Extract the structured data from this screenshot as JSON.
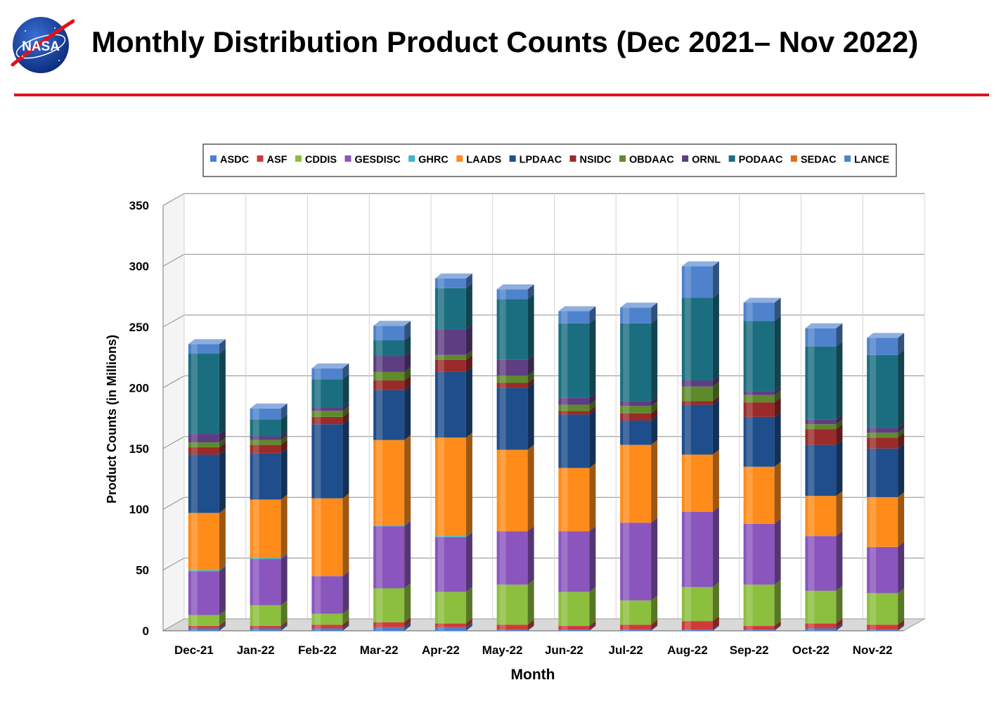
{
  "header": {
    "title": "Monthly Distribution Product Counts (Dec 2021– Nov 2022)",
    "logo_text": "NASA"
  },
  "chart_data": {
    "type": "bar",
    "stacked": true,
    "style": "3d",
    "title": "",
    "xlabel": "Month",
    "ylabel": "Product Counts (in Millions)",
    "ylim": [
      0,
      350
    ],
    "yticks": [
      0,
      50,
      100,
      150,
      200,
      250,
      300,
      350
    ],
    "grid": true,
    "legend_position": "top",
    "categories": [
      "Dec-21",
      "Jan-22",
      "Feb-22",
      "Mar-22",
      "Apr-22",
      "May-22",
      "Jun-22",
      "Jul-22",
      "Aug-22",
      "Sep-22",
      "Oct-22",
      "Nov-22"
    ],
    "series": [
      {
        "name": "ASDC",
        "color": "#4a7fd0",
        "values": [
          2,
          2,
          2,
          3,
          3,
          1,
          1,
          1,
          1,
          1,
          2,
          1
        ]
      },
      {
        "name": "ASF",
        "color": "#d03a3a",
        "values": [
          2,
          2,
          3,
          4,
          3,
          4,
          3,
          4,
          7,
          3,
          4,
          4
        ]
      },
      {
        "name": "CDDIS",
        "color": "#8cbf3e",
        "values": [
          9,
          17,
          9,
          28,
          26,
          33,
          28,
          20,
          28,
          34,
          27,
          26
        ]
      },
      {
        "name": "GESDISC",
        "color": "#8a55bd",
        "values": [
          36,
          38,
          31,
          51,
          45,
          44,
          50,
          64,
          62,
          50,
          45,
          38
        ]
      },
      {
        "name": "GHRC",
        "color": "#3fb4cf",
        "values": [
          1,
          1,
          0,
          1,
          1,
          0,
          0,
          0,
          0,
          0,
          0,
          0
        ]
      },
      {
        "name": "LAADS",
        "color": "#ff8c1a",
        "values": [
          47,
          48,
          64,
          70,
          81,
          67,
          52,
          64,
          47,
          47,
          33,
          41
        ]
      },
      {
        "name": "LPDAAC",
        "color": "#1f4e8c",
        "values": [
          48,
          38,
          61,
          41,
          54,
          51,
          44,
          20,
          41,
          41,
          42,
          40
        ]
      },
      {
        "name": "NSIDC",
        "color": "#9b2a2a",
        "values": [
          6,
          7,
          6,
          8,
          10,
          4,
          3,
          6,
          3,
          12,
          13,
          9
        ]
      },
      {
        "name": "OBDAAC",
        "color": "#5f8a2a",
        "values": [
          4,
          4,
          5,
          7,
          4,
          6,
          5,
          6,
          12,
          6,
          4,
          4
        ]
      },
      {
        "name": "ORNL",
        "color": "#5e3d82",
        "values": [
          7,
          3,
          3,
          13,
          21,
          13,
          6,
          4,
          5,
          3,
          4,
          4
        ]
      },
      {
        "name": "PODAAC",
        "color": "#1b6e80",
        "values": [
          66,
          14,
          23,
          13,
          34,
          50,
          61,
          64,
          68,
          58,
          60,
          60
        ]
      },
      {
        "name": "SEDAC",
        "color": "#e06c1a",
        "values": [
          0,
          0,
          0,
          0,
          0,
          0,
          0,
          0,
          0,
          0,
          0,
          0
        ]
      },
      {
        "name": "LANCE",
        "color": "#4f82cc",
        "values": [
          8,
          9,
          9,
          12,
          8,
          8,
          10,
          13,
          26,
          15,
          15,
          14
        ]
      }
    ]
  }
}
